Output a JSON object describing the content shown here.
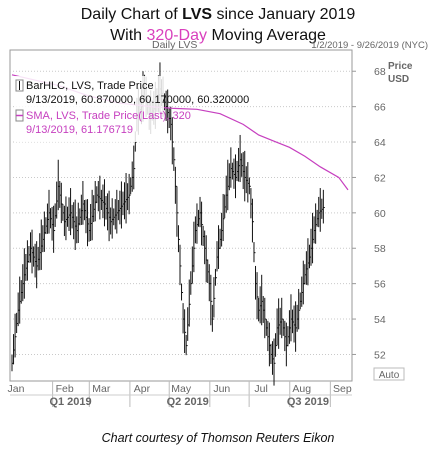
{
  "title": {
    "line1_prefix": "Daily Chart of ",
    "ticker": "LVS",
    "line1_suffix": " since January 2019",
    "line2_prefix": "With ",
    "line2_highlight": "320-Day",
    "line2_suffix": " Moving Average"
  },
  "credit": "Chart courtesy of Thomson Reuters Eikon",
  "colors": {
    "bars": "#111111",
    "sma": "#c63fbf",
    "grid": "#c9c9c9",
    "axis_text": "#666666",
    "highlight": "#d93fbd"
  },
  "chart_data": {
    "type": "line",
    "header_left": "Daily LVS",
    "header_right": "1/2/2019 - 9/26/2019 (NYC)",
    "y_axis_label": [
      "Price",
      "USD"
    ],
    "y_ticks": [
      52,
      54,
      56,
      58,
      60,
      62,
      64,
      66,
      68
    ],
    "ylim": [
      50.5,
      69.2
    ],
    "auto_label": "Auto",
    "months": [
      "Jan",
      "Feb",
      "Mar",
      "Apr",
      "May",
      "Jun",
      "Jul",
      "Aug",
      "Sep"
    ],
    "quarters": [
      "Q1 2019",
      "Q2 2019",
      "Q3 2019"
    ],
    "legend": [
      {
        "label": "BarHLC, LVS, Trade Price",
        "values": "9/13/2019, 60.870000, 60.170000, 60.320000",
        "icon": "bar-icon"
      },
      {
        "label": "SMA, LVS, Trade Price(Last), 320",
        "values": "9/13/2019, 61.176719",
        "icon": "line-icon"
      }
    ],
    "sma_points": [
      [
        0,
        67.8
      ],
      [
        30,
        67.2
      ],
      [
        50,
        66.6
      ],
      [
        70,
        66.2
      ],
      [
        90,
        66.0
      ],
      [
        105,
        65.9
      ],
      [
        120,
        65.85
      ],
      [
        135,
        65.6
      ],
      [
        150,
        65.0
      ],
      [
        160,
        64.4
      ],
      [
        170,
        64.05
      ],
      [
        180,
        63.7
      ],
      [
        190,
        63.2
      ],
      [
        200,
        62.6
      ],
      [
        212,
        62.0
      ],
      [
        218,
        61.3
      ]
    ],
    "price_path": [
      [
        0,
        51.5
      ],
      [
        4,
        54.5
      ],
      [
        8,
        56.5
      ],
      [
        12,
        58.0
      ],
      [
        16,
        57.0
      ],
      [
        20,
        58.5
      ],
      [
        24,
        60.0
      ],
      [
        27,
        59.0
      ],
      [
        30,
        61.5
      ],
      [
        34,
        59.5
      ],
      [
        38,
        60.0
      ],
      [
        42,
        59.0
      ],
      [
        46,
        60.5
      ],
      [
        50,
        59.0
      ],
      [
        55,
        61.0
      ],
      [
        60,
        60.5
      ],
      [
        64,
        59.5
      ],
      [
        68,
        60.0
      ],
      [
        72,
        60.5
      ],
      [
        76,
        61.0
      ],
      [
        79,
        62.5
      ],
      [
        81,
        65.5
      ],
      [
        84,
        66.0
      ],
      [
        86,
        67.0
      ],
      [
        89,
        65.5
      ],
      [
        93,
        66.0
      ],
      [
        96,
        67.0
      ],
      [
        100,
        66.0
      ],
      [
        103,
        65.0
      ],
      [
        105,
        63.0
      ],
      [
        107,
        60.0
      ],
      [
        109,
        57.0
      ],
      [
        111,
        54.0
      ],
      [
        113,
        52.5
      ],
      [
        116,
        56.0
      ],
      [
        119,
        59.0
      ],
      [
        122,
        60.0
      ],
      [
        125,
        58.0
      ],
      [
        128,
        56.0
      ],
      [
        130,
        54.0
      ],
      [
        133,
        57.5
      ],
      [
        136,
        59.0
      ],
      [
        139,
        61.0
      ],
      [
        142,
        62.5
      ],
      [
        145,
        62.0
      ],
      [
        148,
        63.0
      ],
      [
        151,
        62.0
      ],
      [
        154,
        61.5
      ],
      [
        156,
        59.5
      ],
      [
        158,
        56.0
      ],
      [
        160,
        54.5
      ],
      [
        162,
        55.0
      ],
      [
        165,
        53.5
      ],
      [
        168,
        52.0
      ],
      [
        170,
        51.5
      ],
      [
        172,
        53.5
      ],
      [
        175,
        54.0
      ],
      [
        178,
        52.5
      ],
      [
        181,
        54.0
      ],
      [
        184,
        53.5
      ],
      [
        187,
        55.0
      ],
      [
        190,
        56.5
      ],
      [
        193,
        57.5
      ],
      [
        196,
        59.0
      ],
      [
        199,
        60.0
      ],
      [
        202,
        60.3
      ]
    ],
    "x_domain": [
      0,
      218
    ]
  }
}
